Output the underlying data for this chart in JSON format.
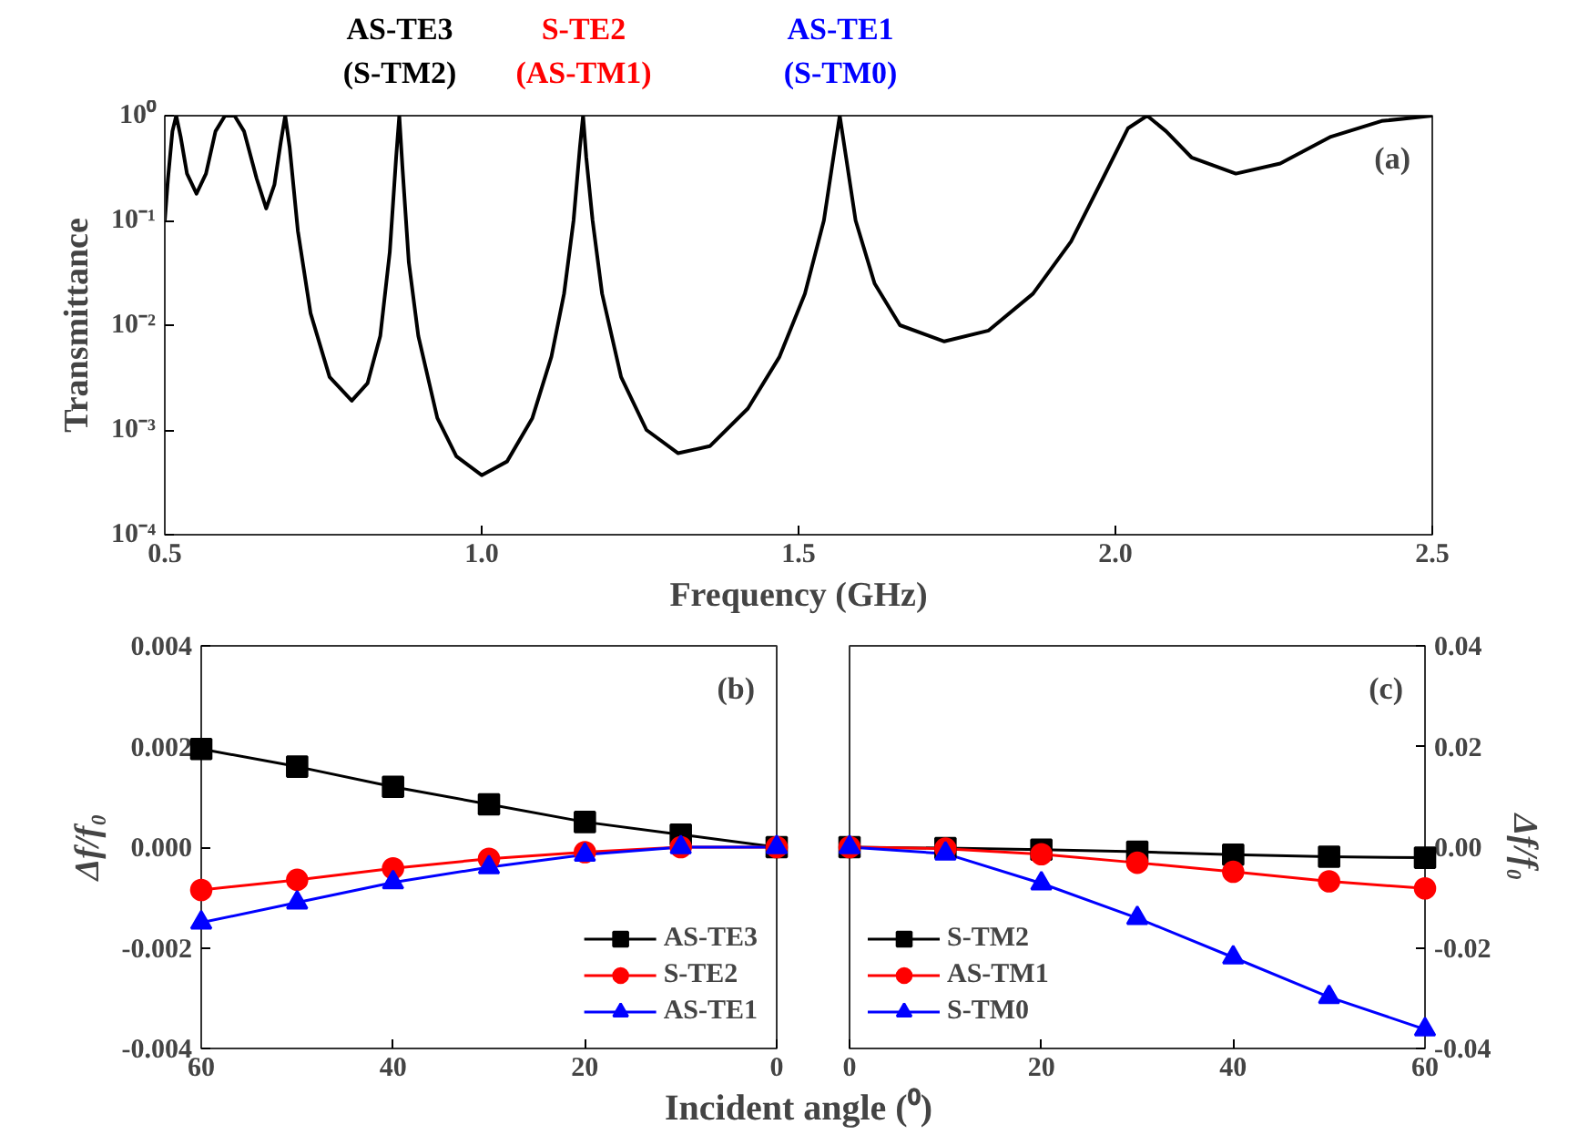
{
  "chart_data": [
    {
      "type": "line",
      "xlabel": "Frequency (GHz)",
      "ylabel": "Transmittance",
      "log": "y",
      "xlim": [
        0.5,
        2.5
      ],
      "xticks": [
        {
          "value": 0.5,
          "label": "0.5"
        },
        {
          "value": 1.0,
          "label": "1.0"
        },
        {
          "value": 1.5,
          "label": "1.5"
        },
        {
          "value": 2.0,
          "label": "2.0"
        },
        {
          "value": 2.5,
          "label": "2.5"
        }
      ],
      "ylim": [
        0.0001,
        1
      ],
      "yticks": [
        {
          "value": 0.0001,
          "label": "10⁻⁴"
        },
        {
          "value": 0.001,
          "label": "10⁻³"
        },
        {
          "value": 0.01,
          "label": "10⁻²"
        },
        {
          "value": 0.1,
          "label": "10⁻¹"
        },
        {
          "value": 1,
          "label": "10⁰"
        }
      ],
      "x": [
        0.5,
        0.505,
        0.512,
        0.518,
        0.525,
        0.535,
        0.55,
        0.565,
        0.58,
        0.595,
        0.61,
        0.625,
        0.645,
        0.66,
        0.673,
        0.683,
        0.69,
        0.697,
        0.71,
        0.73,
        0.76,
        0.795,
        0.82,
        0.84,
        0.855,
        0.865,
        0.87,
        0.875,
        0.885,
        0.9,
        0.93,
        0.96,
        1.0,
        1.04,
        1.08,
        1.11,
        1.13,
        1.145,
        1.155,
        1.16,
        1.165,
        1.175,
        1.19,
        1.22,
        1.26,
        1.31,
        1.36,
        1.42,
        1.47,
        1.51,
        1.54,
        1.555,
        1.565,
        1.575,
        1.59,
        1.62,
        1.66,
        1.73,
        1.8,
        1.87,
        1.93,
        1.98,
        2.02,
        2.05,
        2.08,
        2.12,
        2.19,
        2.26,
        2.34,
        2.42,
        2.5
      ],
      "series": [
        {
          "color": "#000000",
          "values": [
            0.1,
            0.25,
            0.71,
            1,
            0.63,
            0.28,
            0.18,
            0.28,
            0.71,
            1,
            1,
            0.71,
            0.25,
            0.13,
            0.22,
            0.56,
            1,
            0.5,
            0.079,
            0.013,
            0.0032,
            0.0019,
            0.0028,
            0.0079,
            0.05,
            0.4,
            1,
            0.32,
            0.04,
            0.0079,
            0.0013,
            0.00056,
            0.00037,
            0.0005,
            0.0013,
            0.005,
            0.02,
            0.1,
            0.5,
            1,
            0.4,
            0.1,
            0.02,
            0.0032,
            0.001,
            0.0006,
            0.0007,
            0.0016,
            0.005,
            0.02,
            0.1,
            0.4,
            1,
            0.4,
            0.1,
            0.025,
            0.01,
            0.007,
            0.0089,
            0.02,
            0.063,
            0.25,
            0.76,
            1,
            0.71,
            0.4,
            0.28,
            0.35,
            0.63,
            0.89,
            1
          ]
        }
      ],
      "annotations": [
        "AS-TE3\n(S-TM2)",
        "S-TE2\n(AS-TM1)",
        "AS-TE1\n(S-TM0)",
        "(a)"
      ]
    },
    {
      "type": "line",
      "ylabel": "Δf/f₀",
      "xlabel": "Incident angle (⁰)",
      "legend": "bottom right",
      "xlim": [
        60,
        0
      ],
      "xticks": [
        60,
        40,
        20,
        0
      ],
      "ylim": [
        -0.004,
        0.004
      ],
      "yticks": [
        {
          "value": -0.004,
          "label": "-0.004"
        },
        {
          "value": -0.002,
          "label": "-0.002"
        },
        {
          "value": 0,
          "label": "0.000"
        },
        {
          "value": 0.002,
          "label": "0.002"
        },
        {
          "value": 0.004,
          "label": "0.004"
        }
      ],
      "x": [
        0,
        10,
        20,
        30,
        40,
        50,
        60
      ],
      "series": [
        {
          "name": "AS-TE3",
          "color": "#000000",
          "marker": "square",
          "values": [
            0,
            0.00025,
            0.0005,
            0.00085,
            0.0012,
            0.0016,
            0.00195
          ]
        },
        {
          "name": "S-TE2",
          "color": "#ff0000",
          "marker": "circle",
          "values": [
            0,
            0,
            -0.0001,
            -0.00023,
            -0.00042,
            -0.00065,
            -0.00085
          ]
        },
        {
          "name": "AS-TE1",
          "color": "#0000ff",
          "marker": "triangle",
          "values": [
            0,
            0,
            -0.00015,
            -0.0004,
            -0.0007,
            -0.0011,
            -0.0015
          ]
        }
      ],
      "annotations": [
        "(b)"
      ]
    },
    {
      "type": "line",
      "y2label": "Δf/f₀",
      "legend": "bottom left",
      "xlim": [
        0,
        60
      ],
      "xticks": [
        0,
        20,
        40,
        60
      ],
      "y2lim": [
        -0.04,
        0.04
      ],
      "y2ticks": [
        {
          "value": -0.04,
          "label": "-0.04"
        },
        {
          "value": -0.02,
          "label": "-0.02"
        },
        {
          "value": 0,
          "label": "0.00"
        },
        {
          "value": 0.02,
          "label": "0.02"
        },
        {
          "value": 0.04,
          "label": "0.04"
        }
      ],
      "x": [
        0,
        10,
        20,
        30,
        40,
        50,
        60
      ],
      "series": [
        {
          "name": "S-TM2",
          "color": "#000000",
          "marker": "square",
          "axis": "y2",
          "values": [
            0,
            -0.0002,
            -0.0005,
            -0.0009,
            -0.0015,
            -0.0019,
            -0.0021
          ]
        },
        {
          "name": "AS-TM1",
          "color": "#ff0000",
          "marker": "circle",
          "axis": "y2",
          "values": [
            0,
            -0.0003,
            -0.0014,
            -0.0031,
            -0.0049,
            -0.0068,
            -0.0082
          ]
        },
        {
          "name": "S-TM0",
          "color": "#0000ff",
          "marker": "triangle",
          "axis": "y2",
          "values": [
            0,
            -0.0013,
            -0.0072,
            -0.0141,
            -0.0219,
            -0.0298,
            -0.0362
          ]
        }
      ],
      "annotations": [
        "(c)"
      ]
    }
  ]
}
